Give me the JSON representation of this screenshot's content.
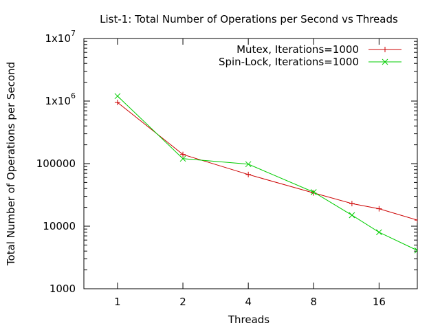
{
  "chart_data": {
    "type": "line",
    "title": "List-1: Total Number of Operations per Second vs Threads",
    "xlabel": "Threads",
    "ylabel": "Total Number of Operations per Second",
    "x_scale": "log2",
    "y_scale": "log10",
    "xlim": [
      0.7,
      24
    ],
    "ylim": [
      1000,
      10000000
    ],
    "x_ticks": [
      1,
      2,
      4,
      8,
      16
    ],
    "x_tick_labels": [
      "1",
      "2",
      "4",
      "8",
      "16"
    ],
    "y_ticks": [
      {
        "value": 1000,
        "base": "1000",
        "exp": ""
      },
      {
        "value": 10000,
        "base": "10000",
        "exp": ""
      },
      {
        "value": 100000,
        "base": "100000",
        "exp": ""
      },
      {
        "value": 1000000,
        "base": "1x10",
        "exp": "6"
      },
      {
        "value": 10000000,
        "base": "1x10",
        "exp": "7"
      }
    ],
    "grid": false,
    "legend_position": "top-right",
    "series": [
      {
        "name": "Mutex, Iterations=1000",
        "color": "#cc0000",
        "marker": "plus",
        "x": [
          1,
          2,
          4,
          8,
          12,
          16,
          24
        ],
        "y": [
          950000,
          140000,
          67000,
          34000,
          23000,
          19000,
          12500
        ]
      },
      {
        "name": "Spin-Lock, Iterations=1000",
        "color": "#00cc00",
        "marker": "cross",
        "x": [
          1,
          2,
          4,
          8,
          12,
          16,
          24
        ],
        "y": [
          1200000,
          120000,
          98000,
          35000,
          15000,
          8000,
          4100
        ]
      }
    ]
  }
}
